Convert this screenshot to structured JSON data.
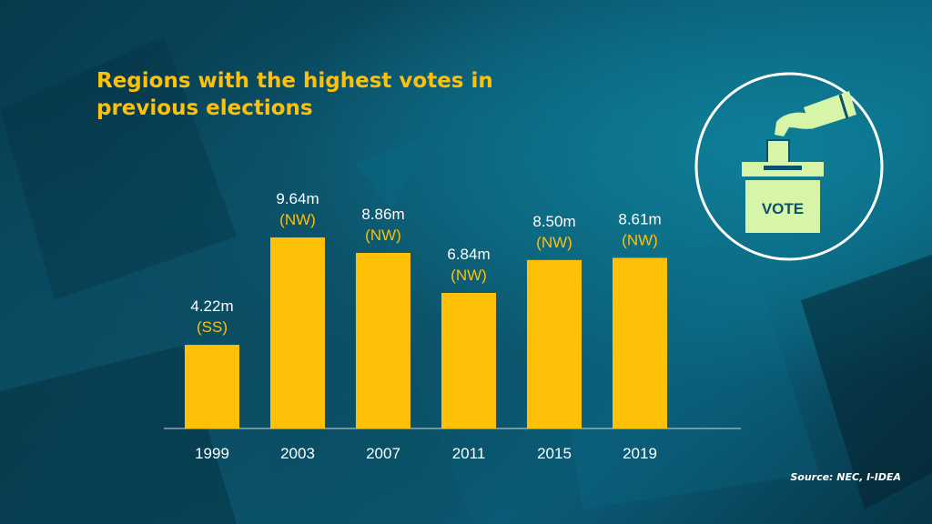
{
  "title_lines": [
    "Regions with the highest votes in",
    "previous elections"
  ],
  "source": "Source: NEC, I-IDEA",
  "icon": {
    "name": "ballot-box-icon",
    "label": "VOTE"
  },
  "colors": {
    "bar": "#ffc107",
    "value_text": "#ffffff",
    "region_text": "#ffc107",
    "axis": "#cfd8dc",
    "icon": "#d6f5a8"
  },
  "chart_data": {
    "type": "bar",
    "title": "Regions with the highest votes in previous elections",
    "categories": [
      "1999",
      "2003",
      "2007",
      "2011",
      "2015",
      "2019"
    ],
    "values": [
      4.22,
      9.64,
      8.86,
      6.84,
      8.5,
      8.61
    ],
    "value_labels": [
      "4.22m",
      "9.64m",
      "8.86m",
      "6.84m",
      "8.50m",
      "8.61m"
    ],
    "region_labels": [
      "(SS)",
      "(NW)",
      "(NW)",
      "(NW)",
      "(NW)",
      "(NW)"
    ],
    "xlabel": "",
    "ylabel": "",
    "ylim": [
      0,
      11
    ],
    "grid": false,
    "legend": "none"
  }
}
